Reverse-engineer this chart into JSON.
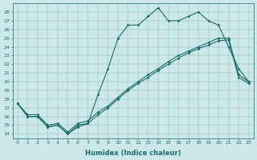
{
  "xlabel": "Humidex (Indice chaleur)",
  "xlim": [
    -0.5,
    23.5
  ],
  "ylim": [
    13.5,
    29.0
  ],
  "yticks": [
    14,
    15,
    16,
    17,
    18,
    19,
    20,
    21,
    22,
    23,
    24,
    25,
    26,
    27,
    28
  ],
  "xticks": [
    0,
    1,
    2,
    3,
    4,
    5,
    6,
    7,
    8,
    9,
    10,
    11,
    12,
    13,
    14,
    15,
    16,
    17,
    18,
    19,
    20,
    21,
    22,
    23
  ],
  "bg_color": "#cce8e8",
  "line_color": "#1a6b6b",
  "line1_x": [
    0,
    1,
    2,
    3,
    4,
    5,
    6,
    7,
    8,
    9,
    10,
    11,
    12,
    13,
    14,
    15,
    16,
    17,
    18,
    19,
    20,
    21,
    22,
    23
  ],
  "line1_y": [
    17.5,
    16.0,
    16.0,
    14.8,
    15.0,
    14.0,
    14.8,
    15.2,
    18.5,
    21.5,
    25.0,
    26.5,
    26.5,
    27.5,
    28.5,
    27.0,
    27.0,
    27.5,
    28.0,
    27.0,
    26.5,
    24.0,
    21.5,
    20.0
  ],
  "line2_x": [
    0,
    1,
    2,
    3,
    4,
    5,
    6,
    7,
    8,
    9,
    10,
    11,
    12,
    13,
    14,
    15,
    16,
    17,
    18,
    19,
    20,
    21,
    22,
    23
  ],
  "line2_y": [
    17.5,
    16.0,
    16.0,
    14.8,
    15.0,
    14.0,
    15.0,
    15.2,
    16.2,
    17.0,
    18.0,
    19.0,
    19.8,
    20.5,
    21.3,
    22.0,
    22.7,
    23.3,
    23.8,
    24.2,
    24.7,
    24.8,
    20.5,
    19.8
  ],
  "line3_x": [
    0,
    1,
    2,
    3,
    4,
    5,
    6,
    7,
    8,
    9,
    10,
    11,
    12,
    13,
    14,
    15,
    16,
    17,
    18,
    19,
    20,
    21,
    22,
    23
  ],
  "line3_y": [
    17.5,
    16.2,
    16.2,
    15.0,
    15.2,
    14.2,
    15.2,
    15.5,
    16.5,
    17.2,
    18.2,
    19.2,
    20.0,
    20.8,
    21.5,
    22.3,
    23.0,
    23.5,
    24.0,
    24.5,
    25.0,
    25.0,
    20.8,
    20.0
  ]
}
